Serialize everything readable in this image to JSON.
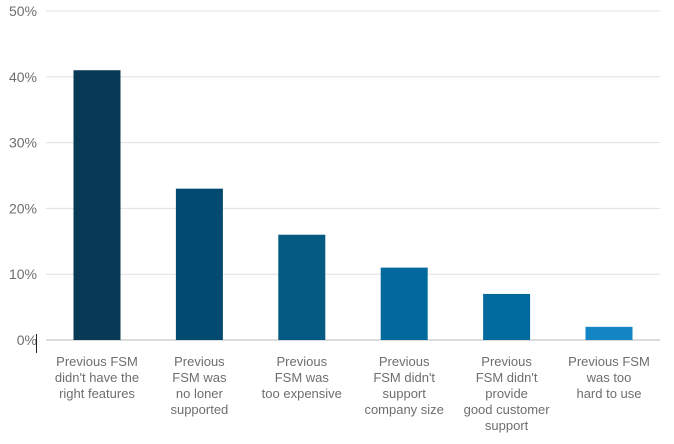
{
  "chart_data": {
    "type": "bar",
    "title": "",
    "xlabel": "",
    "ylabel": "",
    "ylim": [
      0,
      50
    ],
    "yticks": [
      "0%",
      "10%",
      "20%",
      "30%",
      "40%",
      "50%"
    ],
    "ytick_values": [
      0,
      10,
      20,
      30,
      40,
      50
    ],
    "grid": true,
    "legend": "none",
    "categories": [
      [
        "Previous FSM",
        "didn't have the",
        "right features"
      ],
      [
        "Previous",
        "FSM was",
        "no loner",
        "supported"
      ],
      [
        "Previous",
        "FSM was",
        "too expensive"
      ],
      [
        "Previous",
        "FSM didn't",
        "support",
        "company size"
      ],
      [
        "Previous",
        "FSM didn't",
        "provide",
        "good customer",
        "support"
      ],
      [
        "Previous FSM",
        "was too",
        "hard to use"
      ]
    ],
    "values": [
      41,
      23,
      16,
      11,
      7,
      2
    ],
    "colors": [
      "#083a56",
      "#024a70",
      "#045a82",
      "#02699c",
      "#026b9e",
      "#1485c4"
    ]
  }
}
